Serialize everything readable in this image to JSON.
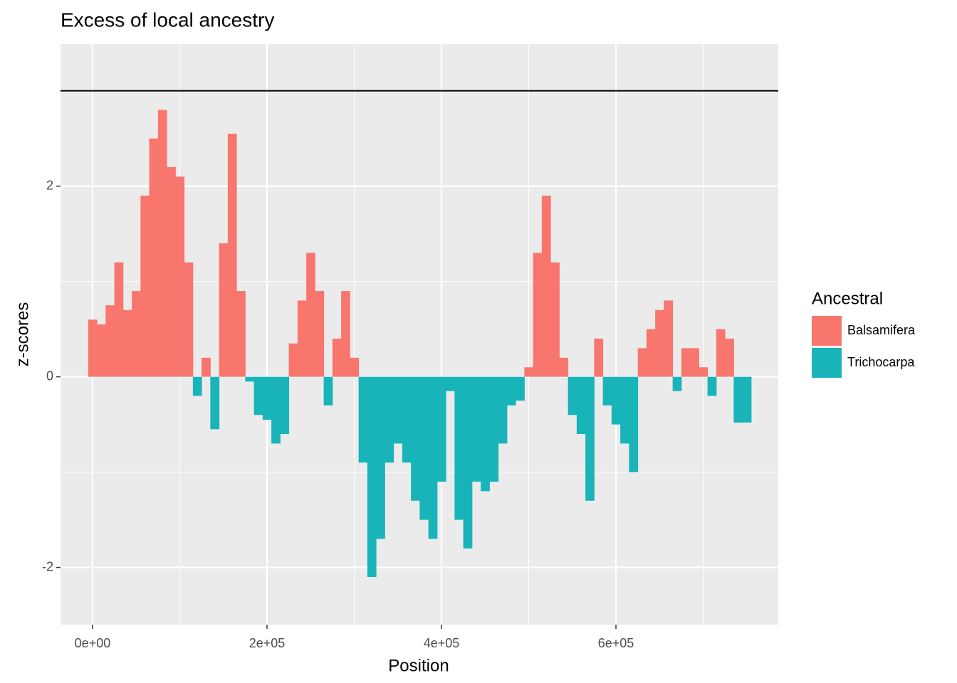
{
  "chart_data": {
    "type": "area",
    "title": "Excess of local ancestry",
    "x_label": "Position",
    "y_label": "z-scores",
    "legend_title": "Ancestral",
    "legend": "right",
    "grid": true,
    "hline": 3,
    "xlim": [
      -36700,
      786100
    ],
    "ylim": [
      -2.6,
      3.49
    ],
    "xticks": [
      {
        "value": 0,
        "label": "0e+00"
      },
      {
        "value": 200000,
        "label": "2e+05"
      },
      {
        "value": 400000,
        "label": "4e+05"
      },
      {
        "value": 600000,
        "label": "6e+05"
      }
    ],
    "x_minor_ticks": [
      100000,
      300000,
      500000,
      700000
    ],
    "yticks": [
      -2,
      0,
      2
    ],
    "y_minor_ticks": [
      -1,
      1,
      3
    ],
    "x": [
      0,
      10000,
      20000,
      30000,
      40000,
      50000,
      60000,
      70000,
      80000,
      90000,
      100000,
      110000,
      120000,
      130000,
      140000,
      150000,
      160000,
      170000,
      180000,
      190000,
      200000,
      210000,
      220000,
      230000,
      240000,
      250000,
      260000,
      270000,
      280000,
      290000,
      300000,
      310000,
      320000,
      330000,
      340000,
      350000,
      360000,
      370000,
      380000,
      390000,
      400000,
      410000,
      420000,
      430000,
      440000,
      450000,
      460000,
      470000,
      480000,
      490000,
      500000,
      510000,
      520000,
      530000,
      540000,
      550000,
      560000,
      570000,
      580000,
      590000,
      600000,
      610000,
      620000,
      630000,
      640000,
      650000,
      660000,
      670000,
      680000,
      690000,
      700000,
      710000,
      720000,
      730000,
      740000,
      750000
    ],
    "series": [
      {
        "name": "Balsamifera",
        "color": "#f8766d",
        "values": [
          0.6,
          0.55,
          0.75,
          1.2,
          0.7,
          0.9,
          1.9,
          2.5,
          2.8,
          2.2,
          2.1,
          1.2,
          null,
          0.2,
          null,
          1.4,
          2.55,
          0.9,
          null,
          null,
          null,
          null,
          null,
          0.35,
          0.8,
          1.3,
          0.9,
          null,
          0.4,
          0.9,
          0.2,
          null,
          null,
          null,
          null,
          null,
          null,
          null,
          null,
          null,
          null,
          null,
          null,
          null,
          null,
          null,
          null,
          null,
          null,
          null,
          0.1,
          1.3,
          1.9,
          1.2,
          0.2,
          null,
          null,
          null,
          0.4,
          null,
          null,
          null,
          null,
          0.3,
          0.5,
          0.7,
          0.8,
          null,
          0.3,
          0.3,
          0.1,
          null,
          0.5,
          0.4,
          null,
          null
        ]
      },
      {
        "name": "Trichocarpa",
        "color": "#19b4b9",
        "values": [
          null,
          null,
          null,
          null,
          null,
          null,
          null,
          null,
          null,
          null,
          null,
          null,
          -0.2,
          null,
          -0.55,
          null,
          null,
          null,
          -0.05,
          -0.4,
          -0.45,
          -0.7,
          -0.6,
          null,
          null,
          null,
          null,
          -0.3,
          null,
          null,
          null,
          -0.9,
          -2.1,
          -1.7,
          -0.9,
          -0.7,
          -0.9,
          -1.3,
          -1.5,
          -1.7,
          -1.1,
          -0.15,
          -1.5,
          -1.8,
          -1.1,
          -1.2,
          -1.1,
          -0.7,
          -0.3,
          -0.25,
          null,
          null,
          null,
          null,
          null,
          -0.4,
          -0.6,
          -1.3,
          null,
          -0.3,
          -0.5,
          -0.7,
          -1.0,
          null,
          null,
          null,
          null,
          -0.15,
          null,
          null,
          null,
          -0.2,
          null,
          null,
          -0.48,
          -0.48
        ]
      }
    ]
  }
}
